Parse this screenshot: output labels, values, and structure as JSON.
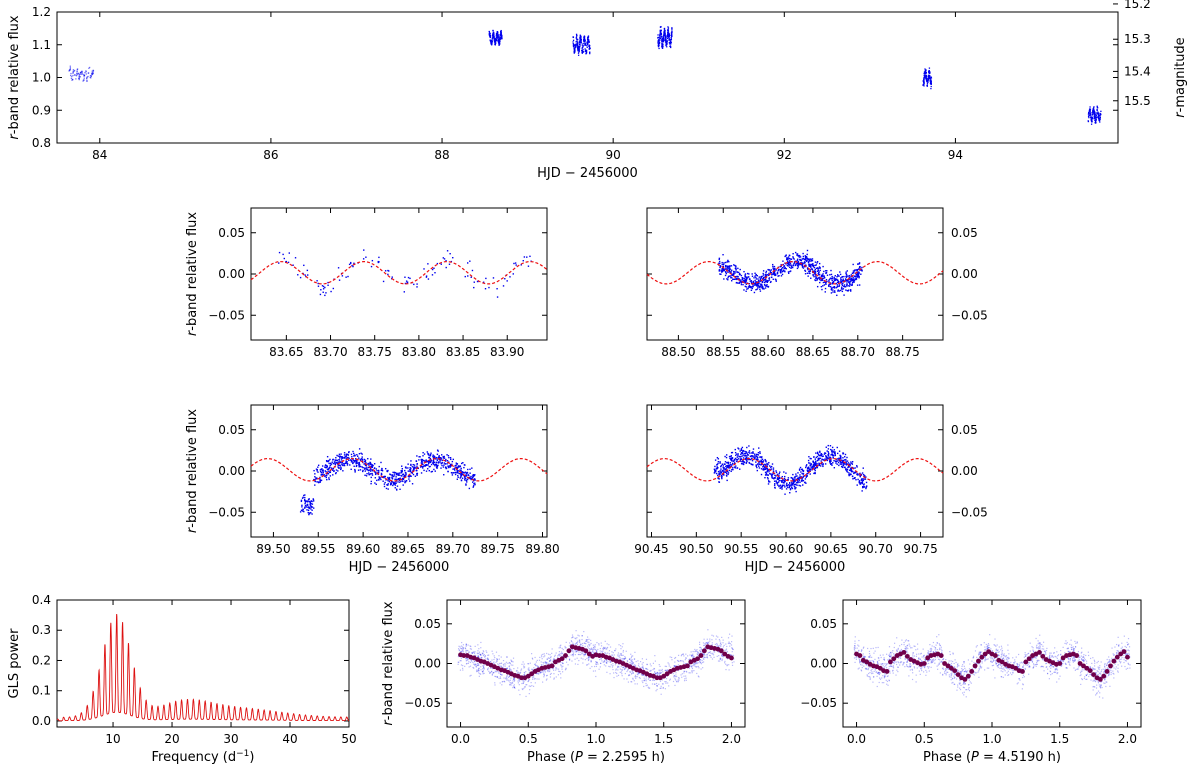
{
  "figure": {
    "colors": {
      "data": "#0000ee",
      "model": "#ee1111",
      "gls": "#dd1111",
      "binned": "#70004a",
      "axes": "#000000"
    }
  },
  "chart_data": [
    {
      "id": "full",
      "type": "scatter",
      "xlabel": "HJD − 2456000",
      "ylabel_italic": "r",
      "ylabel_rest": "-band relative flux",
      "ylabel2_italic": "r",
      "ylabel2_rest": "-magnitude",
      "xlim": [
        83.5,
        95.9
      ],
      "ylim": [
        0.8,
        1.2
      ],
      "xticks": [
        84,
        86,
        88,
        90,
        92,
        94
      ],
      "xtick_labels": [
        "84",
        "86",
        "88",
        "90",
        "92",
        "94"
      ],
      "yticks": [
        0.8,
        0.9,
        1.0,
        1.1,
        1.2
      ],
      "ytick_labels": [
        "0.8",
        "0.9",
        "1.0",
        "1.1",
        "1.2"
      ],
      "y2ticks": [
        15.2,
        15.3,
        15.4,
        15.5
      ],
      "y2tick_labels": [
        "15.2",
        "15.3",
        "15.4",
        "15.5"
      ],
      "mag_zero": 15.42,
      "segments": [
        {
          "x0": 83.64,
          "x1": 83.93,
          "level": 1.01,
          "amp": 0.025,
          "n": 90
        },
        {
          "x0": 88.55,
          "x1": 88.7,
          "level": 1.12,
          "amp": 0.022,
          "n": 220
        },
        {
          "x0": 89.53,
          "x1": 89.73,
          "level": 1.1,
          "amp": 0.03,
          "n": 240
        },
        {
          "x0": 90.52,
          "x1": 90.69,
          "level": 1.12,
          "amp": 0.03,
          "n": 230
        },
        {
          "x0": 93.62,
          "x1": 93.72,
          "level": 1.0,
          "amp": 0.03,
          "n": 130
        },
        {
          "x0": 95.55,
          "x1": 95.7,
          "level": 0.885,
          "amp": 0.025,
          "n": 150
        }
      ]
    },
    {
      "id": "night1",
      "type": "scatter",
      "ylabel_italic": "r",
      "ylabel_rest": "-band relative flux",
      "xlim": [
        83.61,
        83.945
      ],
      "ylim": [
        -0.08,
        0.08
      ],
      "xticks": [
        83.65,
        83.7,
        83.75,
        83.8,
        83.85,
        83.9
      ],
      "xtick_labels": [
        "83.65",
        "83.70",
        "83.75",
        "83.80",
        "83.85",
        "83.90"
      ],
      "yticks": [
        -0.05,
        0.0,
        0.05
      ],
      "ytick_labels": [
        "−0.05",
        "0.00",
        "0.05"
      ],
      "data_range": [
        83.64,
        83.93
      ],
      "n_points": 130,
      "model": {
        "amplitude": 0.0135,
        "offset": 0.0015,
        "period_d": 0.09413,
        "phase": 83.62
      }
    },
    {
      "id": "night2",
      "type": "scatter",
      "ylabel_italic": "r",
      "ylabel_rest": "-band relative flux",
      "xlim": [
        88.465,
        88.795
      ],
      "ylim": [
        -0.08,
        0.08
      ],
      "xticks": [
        88.5,
        88.55,
        88.6,
        88.65,
        88.7,
        88.75
      ],
      "xtick_labels": [
        "88.50",
        "88.55",
        "88.60",
        "88.65",
        "88.70",
        "88.75"
      ],
      "yticks": [
        -0.05,
        0.0,
        0.05
      ],
      "ytick_labels": [
        "−0.05",
        "0.00",
        "0.05"
      ],
      "data_range": [
        88.545,
        88.705
      ],
      "n_points": 900,
      "model": {
        "amplitude": 0.0135,
        "offset": 0.0015,
        "period_d": 0.09413,
        "phase": 88.51
      }
    },
    {
      "id": "night3",
      "type": "scatter",
      "xlabel": "HJD − 2456000",
      "ylabel_italic": "r",
      "ylabel_rest": "-band relative flux",
      "xlim": [
        89.475,
        89.805
      ],
      "ylim": [
        -0.08,
        0.08
      ],
      "xticks": [
        89.5,
        89.55,
        89.6,
        89.65,
        89.7,
        89.75,
        89.8
      ],
      "xtick_labels": [
        "89.50",
        "89.55",
        "89.60",
        "89.65",
        "89.70",
        "89.75",
        "89.80"
      ],
      "yticks": [
        -0.05,
        0.0,
        0.05
      ],
      "ytick_labels": [
        "−0.05",
        "0.00",
        "0.05"
      ],
      "data_range": [
        89.53,
        89.725
      ],
      "n_points": 900,
      "model": {
        "amplitude": 0.0135,
        "offset": 0.0015,
        "period_d": 0.09413,
        "phase": 89.47
      }
    },
    {
      "id": "night4",
      "type": "scatter",
      "xlabel": "HJD − 2456000",
      "ylabel_italic": "r",
      "ylabel_rest": "-band relative flux",
      "xlim": [
        90.445,
        90.775
      ],
      "ylim": [
        -0.08,
        0.08
      ],
      "xticks": [
        90.45,
        90.5,
        90.55,
        90.6,
        90.65,
        90.7,
        90.75
      ],
      "xtick_labels": [
        "90.45",
        "90.50",
        "90.55",
        "90.60",
        "90.65",
        "90.70",
        "90.75"
      ],
      "yticks": [
        -0.05,
        0.0,
        0.05
      ],
      "ytick_labels": [
        "−0.05",
        "0.00",
        "0.05"
      ],
      "data_range": [
        90.52,
        90.69
      ],
      "n_points": 900,
      "model": {
        "amplitude": 0.0135,
        "offset": 0.0015,
        "period_d": 0.09413,
        "phase": 90.535
      }
    },
    {
      "id": "gls",
      "type": "line",
      "xlabel": "Frequency (d",
      "xlabel_sup": "−1",
      "xlabel_end": ")",
      "ylabel": "GLS power",
      "xlim": [
        0.5,
        50
      ],
      "ylim": [
        -0.02,
        0.4
      ],
      "xticks": [
        10,
        20,
        30,
        40,
        50
      ],
      "xtick_labels": [
        "10",
        "20",
        "30",
        "40",
        "50"
      ],
      "yticks": [
        0.0,
        0.1,
        0.2,
        0.3,
        0.4
      ],
      "ytick_labels": [
        "0.0",
        "0.1",
        "0.2",
        "0.3",
        "0.4"
      ],
      "peak_frequency": 10.62,
      "peak_power": 0.34
    },
    {
      "id": "phase1",
      "type": "scatter",
      "xlabel": "Phase (",
      "xlabel_italic": "P",
      "xlabel_end": " = 2.2595 h)",
      "ylabel_italic": "r",
      "ylabel_rest": "-band relative flux",
      "xlim": [
        -0.1,
        2.1
      ],
      "ylim": [
        -0.08,
        0.08
      ],
      "xticks": [
        0.0,
        0.5,
        1.0,
        1.5,
        2.0
      ],
      "xtick_labels": [
        "0.0",
        "0.5",
        "1.0",
        "1.5",
        "2.0"
      ],
      "yticks": [
        -0.05,
        0.0,
        0.05
      ],
      "ytick_labels": [
        "−0.05",
        "0.00",
        "0.05"
      ],
      "binned_phase": [
        0.0,
        0.025,
        0.05,
        0.075,
        0.1,
        0.125,
        0.15,
        0.175,
        0.2,
        0.225,
        0.25,
        0.275,
        0.3,
        0.325,
        0.35,
        0.375,
        0.4,
        0.425,
        0.45,
        0.475,
        0.5,
        0.525,
        0.55,
        0.575,
        0.6,
        0.625,
        0.65,
        0.675,
        0.7,
        0.725,
        0.75,
        0.775,
        0.8,
        0.825,
        0.85,
        0.875,
        0.9,
        0.925,
        0.95,
        0.975
      ],
      "binned_flux": [
        0.011,
        0.01,
        0.01,
        0.008,
        0.007,
        0.005,
        0.003,
        0.002,
        0.0,
        -0.002,
        -0.004,
        -0.006,
        -0.008,
        -0.009,
        -0.011,
        -0.013,
        -0.015,
        -0.016,
        -0.018,
        -0.018,
        -0.016,
        -0.013,
        -0.01,
        -0.008,
        -0.006,
        -0.005,
        -0.004,
        -0.003,
        0.002,
        0.004,
        0.006,
        0.01,
        0.016,
        0.021,
        0.02,
        0.019,
        0.018,
        0.016,
        0.012,
        0.009
      ]
    },
    {
      "id": "phase2",
      "type": "scatter",
      "xlabel": "Phase (",
      "xlabel_italic": "P",
      "xlabel_end": " = 4.5190 h)",
      "ylabel": "",
      "xlim": [
        -0.1,
        2.1
      ],
      "ylim": [
        -0.08,
        0.08
      ],
      "xticks": [
        0.0,
        0.5,
        1.0,
        1.5,
        2.0
      ],
      "xtick_labels": [
        "0.0",
        "0.5",
        "1.0",
        "1.5",
        "2.0"
      ],
      "yticks": [
        -0.05,
        0.0,
        0.05
      ],
      "ytick_labels": [
        "−0.05",
        "0.00",
        "0.05"
      ],
      "binned_phase": [
        0.0,
        0.025,
        0.05,
        0.075,
        0.1,
        0.125,
        0.15,
        0.175,
        0.2,
        0.225,
        0.25,
        0.275,
        0.3,
        0.325,
        0.35,
        0.375,
        0.4,
        0.425,
        0.45,
        0.475,
        0.5,
        0.525,
        0.55,
        0.575,
        0.6,
        0.625,
        0.65,
        0.675,
        0.7,
        0.725,
        0.75,
        0.775,
        0.8,
        0.825,
        0.85,
        0.875,
        0.9,
        0.925,
        0.95,
        0.975
      ],
      "binned_flux": [
        0.012,
        0.01,
        0.004,
        0.002,
        -0.001,
        -0.003,
        -0.004,
        -0.006,
        -0.009,
        -0.01,
        0.002,
        0.006,
        0.01,
        0.012,
        0.014,
        0.009,
        0.005,
        0.003,
        0.001,
        -0.001,
        0.0,
        0.007,
        0.01,
        0.011,
        0.012,
        0.01,
        0.0,
        -0.003,
        -0.006,
        -0.009,
        -0.014,
        -0.018,
        -0.02,
        -0.016,
        -0.01,
        -0.003,
        0.003,
        0.008,
        0.012,
        0.015
      ]
    }
  ]
}
